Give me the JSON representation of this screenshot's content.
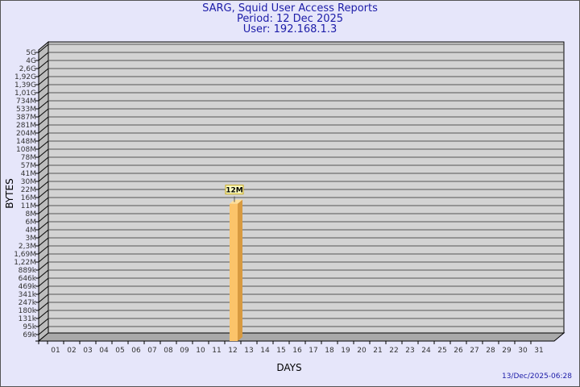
{
  "chart_data": {
    "type": "bar",
    "title": "SARG, Squid User Access Reports",
    "subtitle": [
      "Period: 12 Dec 2025",
      "User: 192.168.1.3"
    ],
    "xlabel": "DAYS",
    "ylabel": "BYTES",
    "y_scale": "log",
    "y_tick_labels": [
      "5G",
      "4G",
      "2,6G",
      "1,92G",
      "1,39G",
      "1,01G",
      "734M",
      "533M",
      "387M",
      "281M",
      "204M",
      "148M",
      "108M",
      "78M",
      "57M",
      "41M",
      "30M",
      "22M",
      "16M",
      "11M",
      "8M",
      "6M",
      "4M",
      "3M",
      "2,3M",
      "1,69M",
      "1,22M",
      "889k",
      "646k",
      "469k",
      "341k",
      "247k",
      "180k",
      "131k",
      "95k",
      "69k"
    ],
    "categories": [
      "01",
      "02",
      "03",
      "04",
      "05",
      "06",
      "07",
      "08",
      "09",
      "10",
      "11",
      "12",
      "13",
      "14",
      "15",
      "16",
      "17",
      "18",
      "19",
      "20",
      "21",
      "22",
      "23",
      "24",
      "25",
      "26",
      "27",
      "28",
      "29",
      "30",
      "31"
    ],
    "bars": [
      {
        "day": "12",
        "value": 12000000,
        "label": "12M"
      }
    ],
    "grid": true,
    "colors": {
      "background": "#e6e6fa",
      "wall": "#d3d3d3",
      "bar_front": "#fcc46a",
      "bar_side": "#d89a40",
      "bar_top": "#ffe09a",
      "label_box": "#ffffc0",
      "title": "#1c1ca8"
    }
  },
  "footer": {
    "timestamp": "13/Dec/2025-06:28"
  }
}
